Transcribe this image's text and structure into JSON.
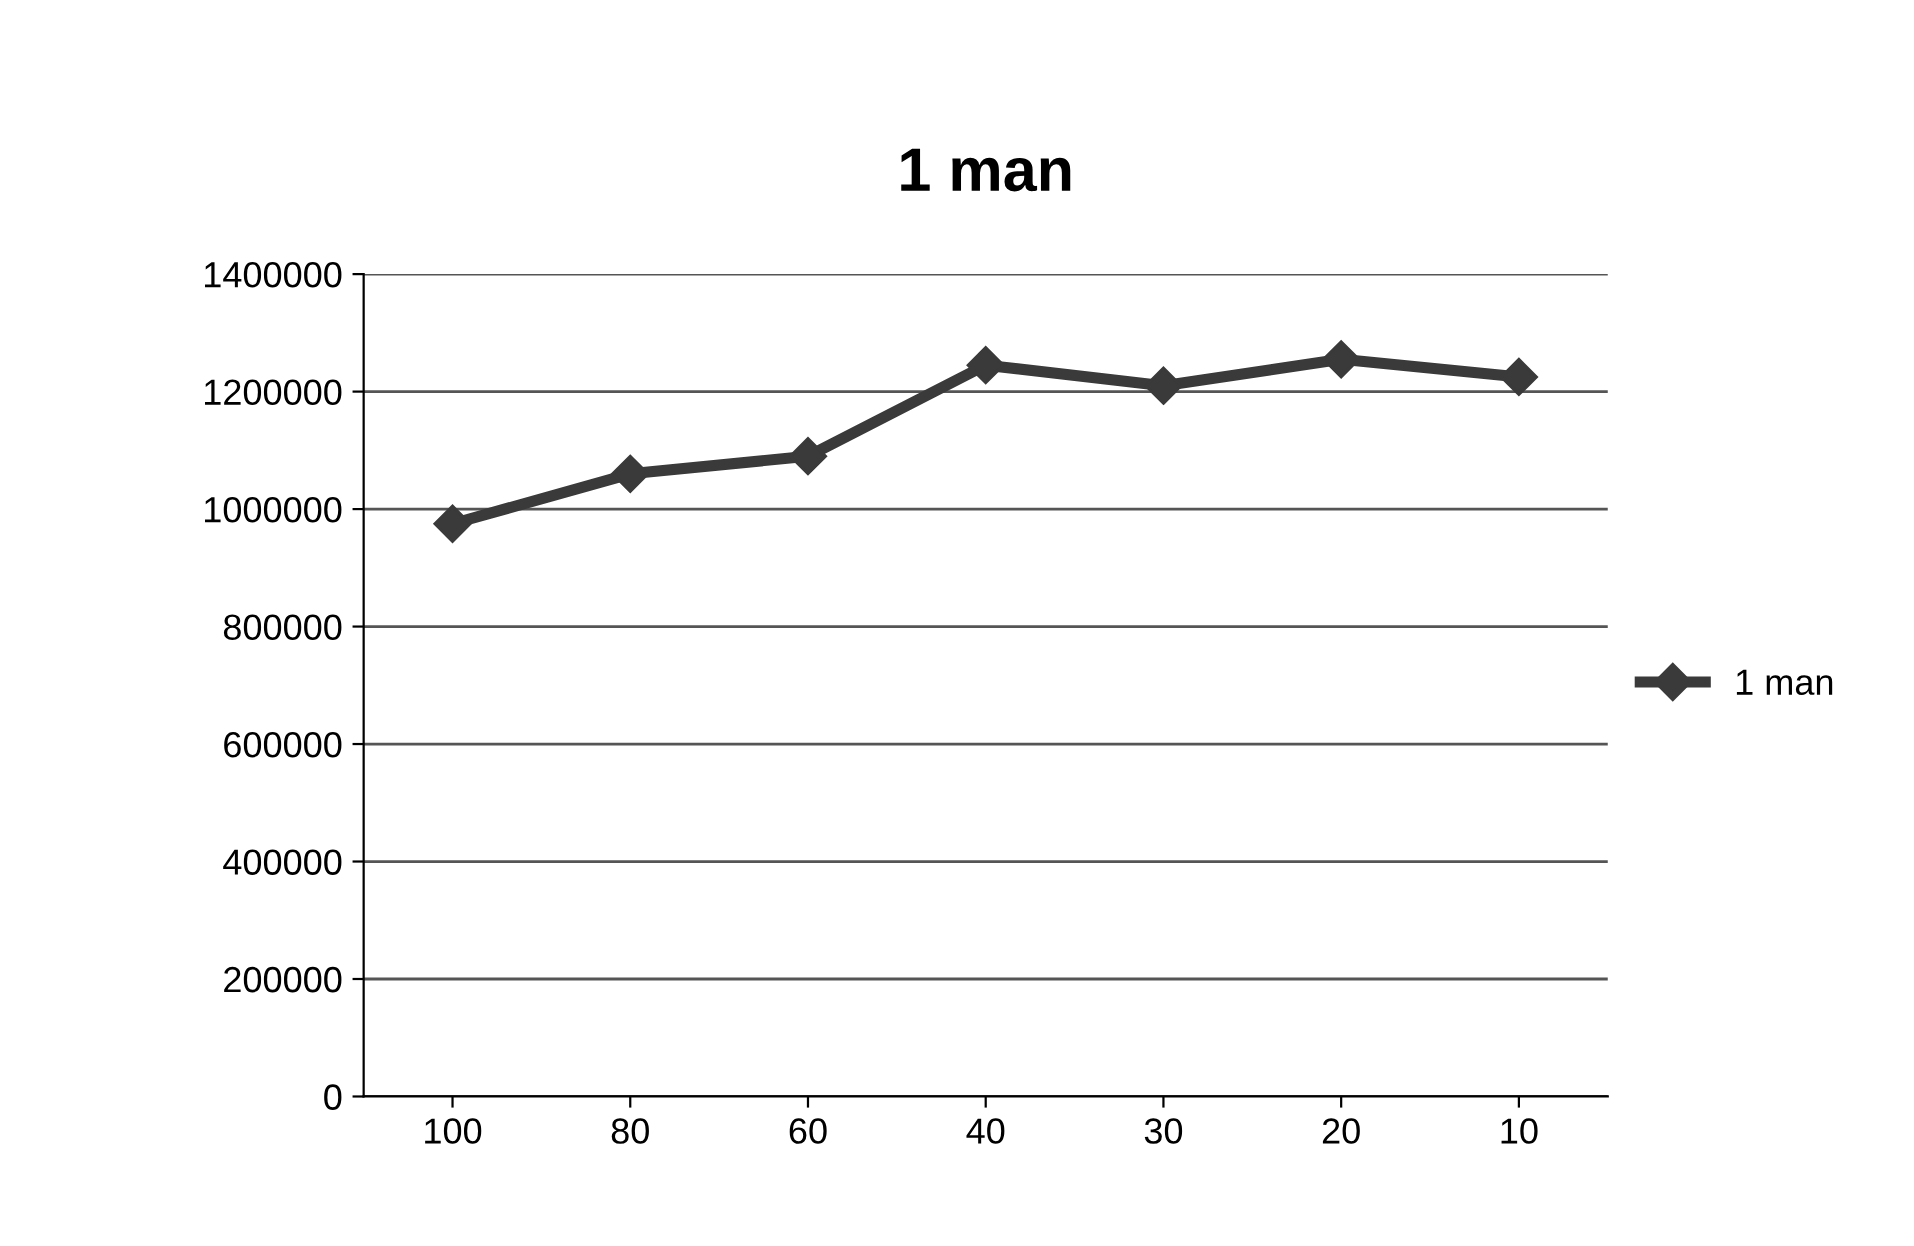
{
  "chart_data": {
    "type": "line",
    "title": "1 man",
    "categories": [
      "100",
      "80",
      "60",
      "40",
      "30",
      "20",
      "10"
    ],
    "series": [
      {
        "name": "1 man",
        "color": "#3a3a3a",
        "values": [
          975000,
          1060000,
          1090000,
          1245000,
          1210000,
          1255000,
          1225000
        ]
      }
    ],
    "ylim": [
      0,
      1400000
    ],
    "yticks": [
      0,
      200000,
      400000,
      600000,
      800000,
      1000000,
      1200000,
      1400000
    ],
    "grid": "y",
    "legend": "right",
    "marker": "diamond",
    "line_style": "solid"
  }
}
